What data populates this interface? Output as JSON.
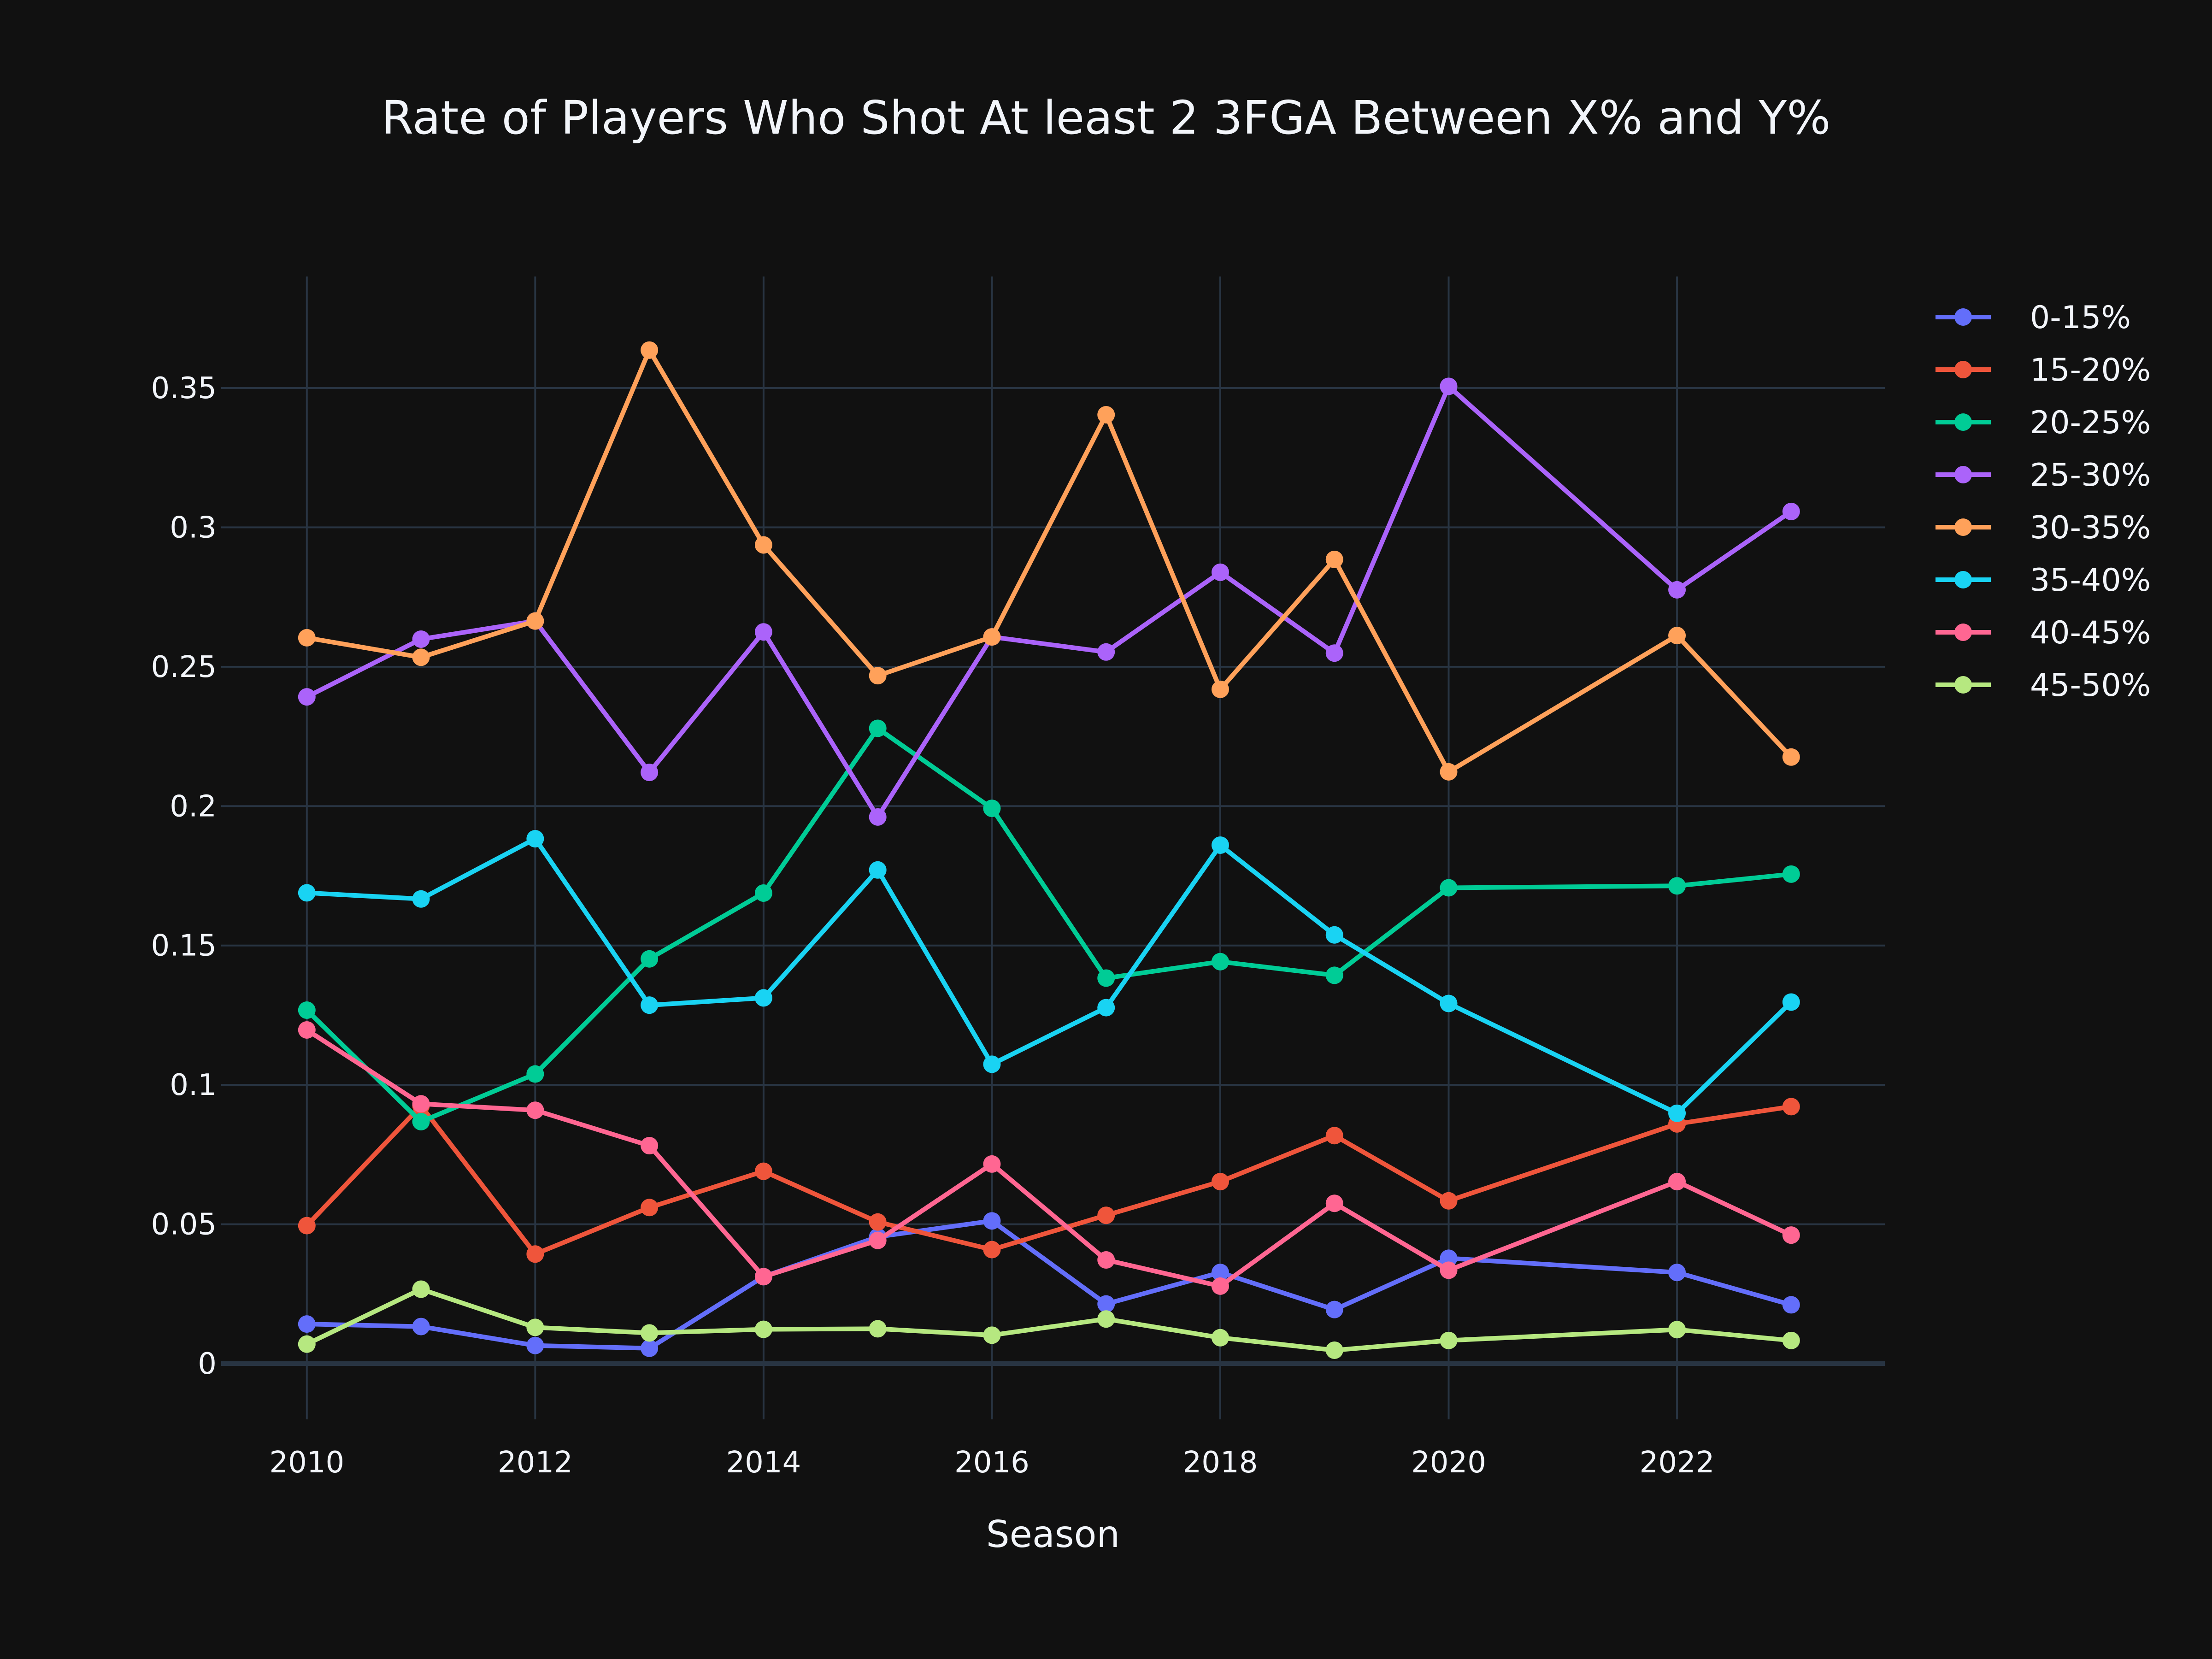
{
  "chart_data": {
    "type": "line",
    "title": "Rate of Players Who Shot At least 2 3FGA Between X% and Y%",
    "xlabel": "Season",
    "ylabel": "",
    "xlim": [
      2009.25,
      2023.82
    ],
    "ylim": [
      -0.02,
      0.39
    ],
    "x_ticks": [
      2010,
      2012,
      2014,
      2016,
      2018,
      2020,
      2022
    ],
    "x_tick_labels": [
      "2010",
      "2012",
      "2014",
      "2016",
      "2018",
      "2020",
      "2022"
    ],
    "y_ticks": [
      0,
      0.05,
      0.1,
      0.15,
      0.2,
      0.25,
      0.3,
      0.35
    ],
    "y_tick_labels": [
      "0",
      "0.05",
      "0.1",
      "0.15",
      "0.2",
      "0.25",
      "0.3",
      "0.35"
    ],
    "grid": true,
    "legend_position": "top-right",
    "background": "#111111",
    "grid_color": "#283442",
    "text_color": "#f2f5fa",
    "x": [
      2010,
      2011,
      2012,
      2013,
      2014,
      2015,
      2016,
      2017,
      2018,
      2019,
      2020,
      2022,
      2023
    ],
    "series": [
      {
        "name": "0-15%",
        "color": "#636efa",
        "values": [
          0.0142,
          0.0133,
          0.0065,
          0.0055,
          0.0312,
          0.0455,
          0.0512,
          0.0214,
          0.0327,
          0.0194,
          0.0378,
          0.0327,
          0.0211
        ]
      },
      {
        "name": "15-20%",
        "color": "#EF553B",
        "values": [
          0.0495,
          0.0925,
          0.0393,
          0.056,
          0.069,
          0.0508,
          0.0409,
          0.0532,
          0.0653,
          0.0818,
          0.0584,
          0.086,
          0.0922
        ]
      },
      {
        "name": "20-25%",
        "color": "#00cc96",
        "values": [
          0.1268,
          0.0868,
          0.1039,
          0.1452,
          0.1688,
          0.2279,
          0.1992,
          0.1383,
          0.1442,
          0.1393,
          0.1707,
          0.1714,
          0.1756
        ]
      },
      {
        "name": "25-30%",
        "color": "#ab63fa",
        "values": [
          0.2392,
          0.2599,
          0.2664,
          0.2121,
          0.2625,
          0.1961,
          0.2607,
          0.2553,
          0.2839,
          0.2549,
          0.3506,
          0.2776,
          0.3057
        ]
      },
      {
        "name": "30-35%",
        "color": "#FFA15A",
        "values": [
          0.2604,
          0.2534,
          0.2664,
          0.3636,
          0.2937,
          0.2468,
          0.2607,
          0.3404,
          0.2419,
          0.2885,
          0.2123,
          0.2612,
          0.2176
        ]
      },
      {
        "name": "35-40%",
        "color": "#19d3f3",
        "values": [
          0.1689,
          0.1667,
          0.1883,
          0.1286,
          0.1312,
          0.1771,
          0.1074,
          0.1277,
          0.186,
          0.1538,
          0.1292,
          0.0898,
          0.1297
        ]
      },
      {
        "name": "40-45%",
        "color": "#FF6692",
        "values": [
          0.1197,
          0.0932,
          0.0909,
          0.0782,
          0.0312,
          0.0442,
          0.0716,
          0.0372,
          0.0278,
          0.0575,
          0.0335,
          0.0653,
          0.0461
        ]
      },
      {
        "name": "45-50%",
        "color": "#B6E880",
        "values": [
          0.007,
          0.0267,
          0.013,
          0.011,
          0.0123,
          0.0125,
          0.0102,
          0.016,
          0.0093,
          0.0048,
          0.0083,
          0.0122,
          0.0083
        ]
      }
    ]
  }
}
